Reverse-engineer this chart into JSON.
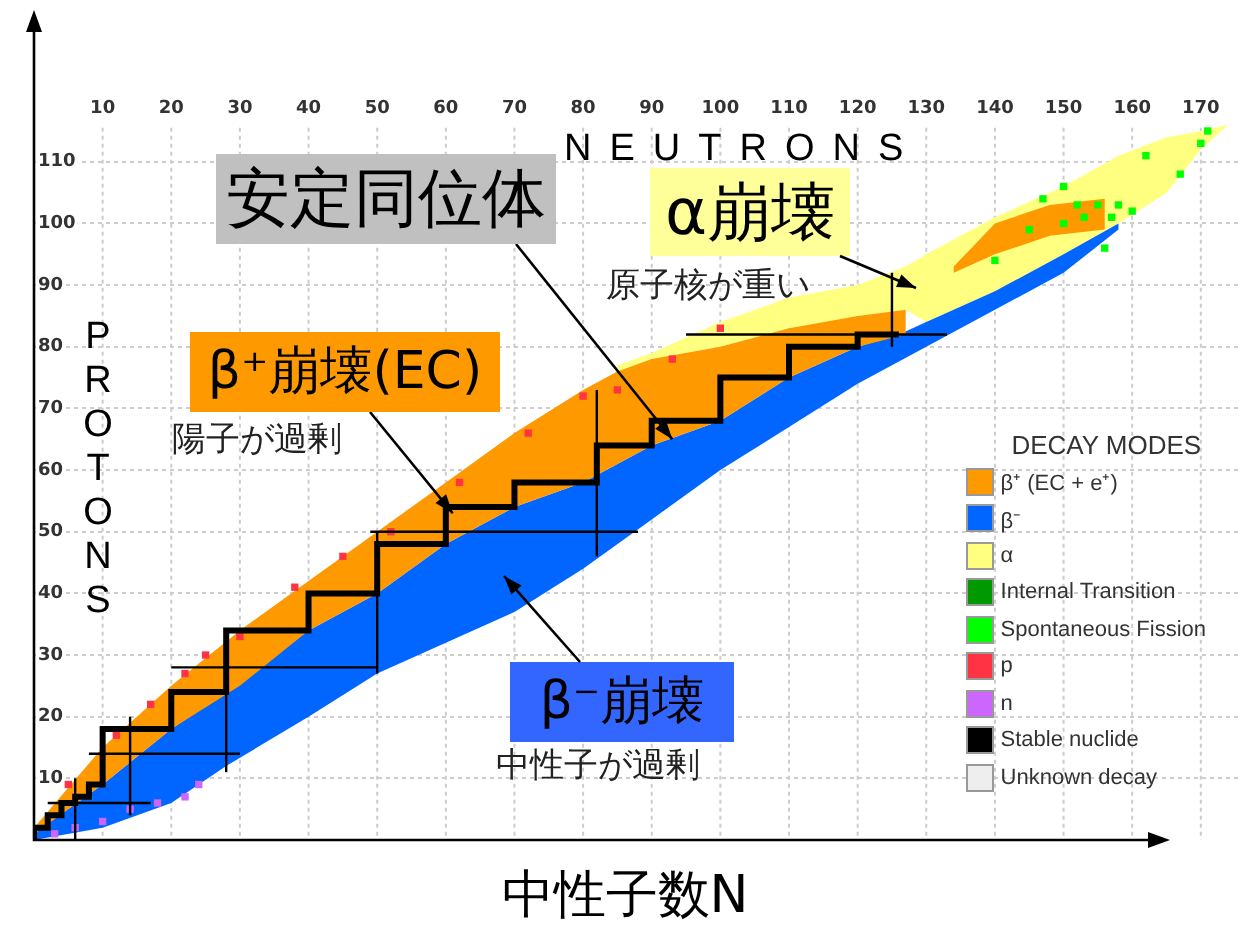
{
  "chart_data": {
    "type": "area",
    "xlabel": "中性子数N",
    "x2label": "NEUTRONS",
    "ylabel": "PROTONS",
    "legend_title": "DECAY MODES",
    "legend": "bottom right",
    "grid": true,
    "xlim": [
      0,
      176
    ],
    "xticks": [
      10,
      20,
      30,
      40,
      50,
      60,
      70,
      80,
      90,
      100,
      110,
      120,
      130,
      140,
      150,
      160,
      170
    ],
    "ylim": [
      0,
      133
    ],
    "yticks": [
      10,
      20,
      30,
      40,
      50,
      60,
      70,
      80,
      90,
      100,
      110
    ],
    "series": [
      {
        "name": "β⁺ (EC + e⁺)",
        "color": "#ff9900",
        "x": [
          0,
          10,
          20,
          30,
          40,
          50,
          60,
          70,
          80,
          85,
          90,
          100,
          110,
          120,
          127,
          127,
          120,
          110,
          100,
          90,
          85,
          80,
          70,
          60,
          50,
          40,
          30,
          20,
          10,
          0
        ],
        "values": [
          2,
          15,
          25,
          34,
          42,
          50,
          58,
          66,
          73,
          76,
          78,
          80,
          83,
          85,
          86,
          82,
          80,
          75,
          68,
          64,
          61,
          58,
          54,
          48,
          40,
          34,
          25,
          18,
          9,
          1
        ]
      },
      {
        "name": "β⁻",
        "color": "#0066ff",
        "x": [
          0,
          10,
          20,
          28,
          40,
          50,
          60,
          70,
          80,
          90,
          100,
          110,
          120,
          126,
          130,
          140,
          150,
          158,
          158,
          150,
          140,
          130,
          120,
          110,
          100,
          90,
          80,
          70,
          60,
          50,
          40,
          28,
          20,
          10,
          0
        ],
        "values": [
          1,
          9,
          18,
          24,
          34,
          40,
          48,
          54,
          58,
          64,
          68,
          75,
          80,
          82,
          84,
          89,
          95,
          100,
          99,
          92,
          86,
          80,
          74,
          67,
          60,
          52,
          44,
          37,
          32,
          27,
          20,
          12,
          6,
          2,
          0
        ]
      },
      {
        "name": "α",
        "color": "#ffff80",
        "x": [
          85,
          90,
          100,
          110,
          120,
          127,
          130,
          140,
          150,
          158,
          165,
          170,
          174,
          170,
          165,
          158,
          150,
          140,
          130,
          127,
          120,
          110,
          100,
          90,
          85
        ],
        "values": [
          77,
          79,
          84,
          88,
          90,
          93,
          95,
          101,
          106,
          111,
          114,
          115,
          116,
          112,
          105,
          100,
          95,
          89,
          84,
          86,
          85,
          83,
          80,
          78,
          76
        ]
      },
      {
        "type": "scatter",
        "name": "Internal Transition",
        "color": "#009900"
      },
      {
        "type": "scatter",
        "name": "Spontaneous Fission",
        "color": "#00ff00",
        "marker": "square",
        "x": [
          140,
          145,
          147,
          150,
          150,
          152,
          153,
          155,
          156,
          157,
          158,
          160,
          162,
          167,
          170,
          171
        ],
        "values": [
          94,
          99,
          104,
          100,
          106,
          103,
          101,
          103,
          96,
          101,
          103,
          102,
          111,
          108,
          113,
          115
        ]
      },
      {
        "type": "scatter",
        "name": "p",
        "color": "#ff3344",
        "marker": "square",
        "x": [
          5,
          12,
          17,
          22,
          25,
          30,
          38,
          45,
          52,
          62,
          72,
          80,
          85,
          93,
          100
        ],
        "values": [
          9,
          17,
          22,
          27,
          30,
          33,
          41,
          46,
          50,
          58,
          66,
          72,
          73,
          78,
          83
        ]
      },
      {
        "type": "scatter",
        "name": "n",
        "color": "#cc66ff",
        "marker": "square",
        "x": [
          3,
          6,
          10,
          14,
          18,
          22,
          24
        ],
        "values": [
          1,
          2,
          3,
          5,
          6,
          7,
          9
        ]
      },
      {
        "type": "step",
        "name": "Stable nuclide",
        "color": "#000000",
        "x": [
          0,
          2,
          4,
          6,
          8,
          10,
          20,
          28,
          40,
          50,
          60,
          70,
          82,
          90,
          100,
          110,
          120,
          126
        ],
        "values": [
          0,
          2,
          4,
          6,
          7,
          9,
          18,
          24,
          34,
          40,
          48,
          54,
          58,
          64,
          68,
          75,
          80,
          82
        ]
      },
      {
        "type": "scatter",
        "name": "Unknown decay",
        "color": "#eeeeee"
      },
      {
        "color": "#ff9900",
        "x": [
          134,
          140,
          148,
          156,
          156,
          148,
          140,
          134
        ],
        "values": [
          93,
          100,
          103,
          104,
          99,
          98,
          95,
          92
        ]
      },
      {
        "type": "line",
        "color": "#000000",
        "x": [
          2,
          17
        ],
        "values": [
          6,
          6
        ]
      },
      {
        "type": "line",
        "color": "#000000",
        "x": [
          8,
          30
        ],
        "values": [
          14,
          14
        ]
      },
      {
        "type": "line",
        "color": "#000000",
        "x": [
          20,
          50
        ],
        "values": [
          28,
          28
        ]
      },
      {
        "type": "line",
        "color": "#000000",
        "x": [
          49,
          88
        ],
        "values": [
          50,
          50
        ]
      },
      {
        "type": "line",
        "color": "#000000",
        "x": [
          95,
          133
        ],
        "values": [
          82,
          82
        ]
      },
      {
        "type": "line",
        "color": "#000000",
        "x": [
          6,
          6
        ],
        "values": [
          0,
          10
        ]
      },
      {
        "type": "line",
        "color": "#000000",
        "x": [
          14,
          14
        ],
        "values": [
          4,
          20
        ]
      },
      {
        "type": "line",
        "color": "#000000",
        "x": [
          28,
          28
        ],
        "values": [
          11,
          33
        ]
      },
      {
        "type": "line",
        "color": "#000000",
        "x": [
          50,
          50
        ],
        "values": [
          27,
          50
        ]
      },
      {
        "type": "line",
        "color": "#000000",
        "x": [
          82,
          82
        ],
        "values": [
          46,
          73
        ]
      },
      {
        "type": "line",
        "color": "#000000",
        "x": [
          125,
          125
        ],
        "values": [
          80,
          92
        ]
      }
    ],
    "annotations": [
      {
        "text": "安定同位体",
        "x": 93,
        "y": 65
      },
      "α崩壊",
      {
        "text": "β⁺崩壊(EC)",
        "x": 61,
        "y": 53
      },
      "β⁻崩壊",
      "原子核が重い",
      "陽子が過剰",
      "中性子が過剰"
    ]
  }
}
